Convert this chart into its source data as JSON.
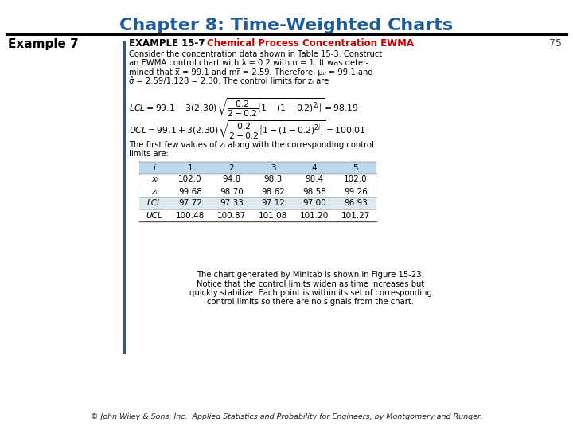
{
  "title": "Chapter 8: Time-Weighted Charts",
  "title_color": "#1F5C99",
  "example_label": "Example 7",
  "example_label_color": "#000000",
  "example_title_black": "EXAMPLE 15-7    ",
  "example_title_red": "Chemical Process Concentration EWMA",
  "example_title_color_black": "#000000",
  "example_title_color_red": "#CC0000",
  "body_text_lines": [
    "Consider the concentration data shown in Table 15-3. Construct",
    "an EWMA control chart with λ = 0.2 with n = 1. It was deter-",
    "mined that x̅ = 99.1 and mr̅ = 2.59. Therefore, μ₀ = 99.1 and",
    "σ̂ = 2.59/1.128 = 2.30. The control limits for zᵢ are"
  ],
  "mid_text_lines": [
    "The first few values of zᵢ along with the corresponding control",
    "limits are:"
  ],
  "table_headers": [
    "i",
    "1",
    "2",
    "3",
    "4",
    "5"
  ],
  "table_rows": [
    [
      "xᵢ",
      "102.0",
      "94.8",
      "98.3",
      "98.4",
      "102.0"
    ],
    [
      "zᵢ",
      "99.68",
      "98.70",
      "98.62",
      "98.58",
      "99.26"
    ],
    [
      "LCL",
      "97.72",
      "97.33",
      "97.12",
      "97.00",
      "96.93"
    ],
    [
      "UCL",
      "100.48",
      "100.87",
      "101.08",
      "101.20",
      "101.27"
    ]
  ],
  "bottom_text_lines": [
    "The chart generated by Minitab is shown in Figure 15-23.",
    "Notice that the control limits widen as time increases but",
    "quickly stabilize. Each point is within its set of corresponding",
    "control limits so there are no signals from the chart."
  ],
  "page_number": "75",
  "footer_normal": "© John Wiley & Sons, Inc.  ",
  "footer_italic": "Applied Statistics and Probability for Engineers",
  "footer_normal2": ", by Montgomery and Runger.",
  "bg_color": "#FFFFFF",
  "divider_color": "#000000",
  "left_bar_color": "#1F5C99",
  "table_header_bg": "#BDD7EE",
  "table_lcl_bg": "#DEEAF1"
}
